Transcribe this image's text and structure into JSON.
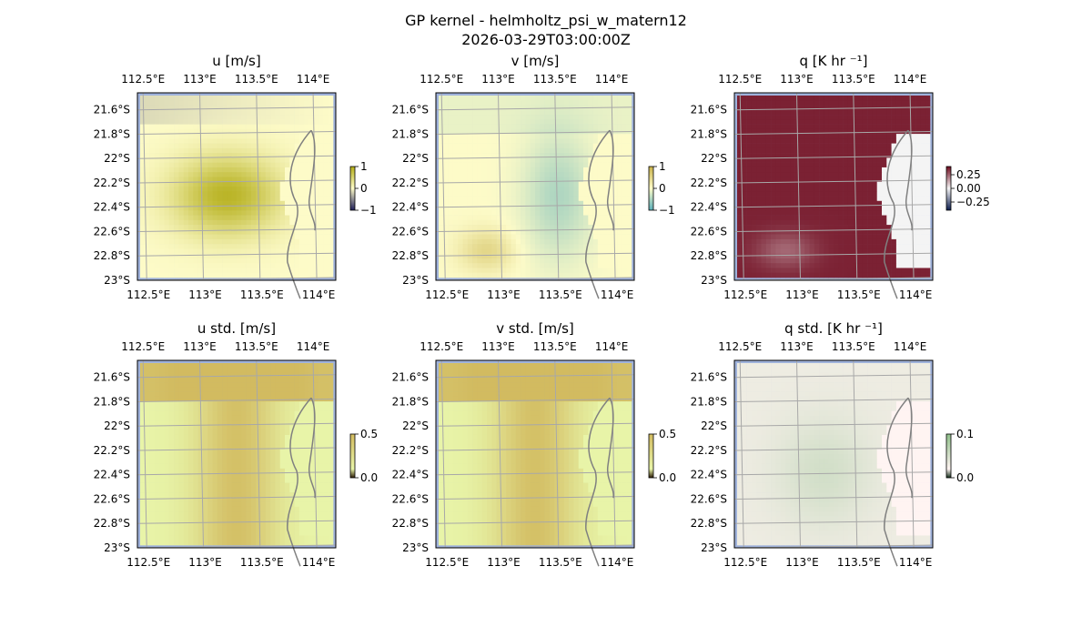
{
  "figure": {
    "title_line1": "GP kernel - helmholtz_psi_w_matern12",
    "title_line2": "2026-03-29T03:00:00Z"
  },
  "axes": {
    "lon_ticks": [
      "112.5°E",
      "113°E",
      "113.5°E",
      "114°E"
    ],
    "lon_values": [
      112.5,
      113.0,
      113.5,
      114.0
    ],
    "lat_ticks": [
      "21.6°S",
      "21.8°S",
      "22°S",
      "22.2°S",
      "22.4°S",
      "22.6°S",
      "22.8°S",
      "23°S"
    ],
    "lat_values": [
      -21.6,
      -21.8,
      -22.0,
      -22.2,
      -22.4,
      -22.6,
      -22.8,
      -23.0
    ],
    "extent": {
      "lon": [
        112.45,
        114.2
      ],
      "lat": [
        -23.0,
        -21.46
      ]
    },
    "gridlines": true,
    "ocean_color": "#9fb2db",
    "coastline_color": "#808080"
  },
  "chart_data": [
    {
      "type": "heatmap",
      "id": "u",
      "title": "u [m/s]",
      "colormap": "yellow-olive-teal diverging",
      "colorbar_ticks": [
        "1",
        "0",
        "−1"
      ],
      "clim": [
        -1,
        1
      ],
      "colors": {
        "low": "#1e1e5a",
        "mid": "#fdfbc8",
        "high": "#b3ad16",
        "fill": "#fdfbc8"
      }
    },
    {
      "type": "heatmap",
      "id": "v",
      "title": "v [m/s]",
      "colormap": "yellow-olive-teal diverging",
      "colorbar_ticks": [
        "1",
        "0",
        "−1"
      ],
      "clim": [
        -1,
        1
      ],
      "colors": {
        "low": "#5aaeb9",
        "mid": "#fdfbc8",
        "high": "#c9b24a",
        "fill": "#fdfbc8"
      }
    },
    {
      "type": "heatmap",
      "id": "q",
      "title": "q [K hr ⁻¹]",
      "colormap": "red-white diverging",
      "colorbar_ticks": [
        "0.25",
        "0.00",
        "−0.25"
      ],
      "clim": [
        -0.25,
        0.25
      ],
      "colors": {
        "low": "#0b1c4d",
        "mid": "#f4f4f4",
        "high": "#6e0a1e",
        "fill": "#f4f4f4"
      }
    },
    {
      "type": "heatmap",
      "id": "u_std",
      "title": "u std. [m/s]",
      "colormap": "sequential yellow-ochre",
      "colorbar_ticks": [
        "0.5",
        "0.0"
      ],
      "clim": [
        0,
        0.5
      ],
      "colors": {
        "low": "#2b1a05",
        "mid": "#e8f4a8",
        "high": "#d2bb60",
        "fill": "#e8f4a8"
      }
    },
    {
      "type": "heatmap",
      "id": "v_std",
      "title": "v std. [m/s]",
      "colormap": "sequential yellow-ochre",
      "colorbar_ticks": [
        "0.5",
        "0.0"
      ],
      "clim": [
        0,
        0.5
      ],
      "colors": {
        "low": "#2b1a05",
        "mid": "#e8f4a8",
        "high": "#d2bb60",
        "fill": "#e8f4a8"
      }
    },
    {
      "type": "heatmap",
      "id": "q_std",
      "title": "q std. [K hr ⁻¹]",
      "colormap": "sequential pink-green",
      "colorbar_ticks": [
        "0.1",
        "0.0"
      ],
      "clim": [
        0,
        0.1
      ],
      "colors": {
        "low": "#0e2a14",
        "mid": "#fff4f2",
        "high": "#8fbf8a",
        "fill": "#fff4f2"
      }
    }
  ]
}
